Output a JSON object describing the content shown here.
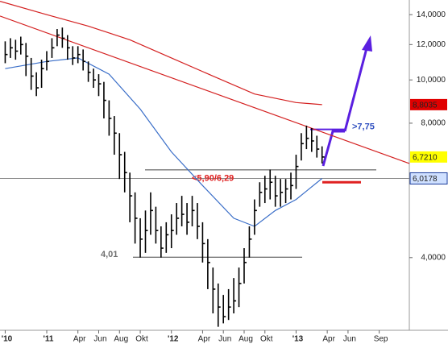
{
  "chart_data": {
    "type": "ohlc",
    "color": "#000000",
    "log_y": true,
    "xlim": [
      7.5,
      46.9
    ],
    "ylim": [
      2.75,
      15.1
    ],
    "xticks": [
      {
        "value": 8,
        "label": "'10"
      },
      {
        "value": 12,
        "label": "'11"
      },
      {
        "value": 15,
        "label": "Apr"
      },
      {
        "value": 17,
        "label": "Jun"
      },
      {
        "value": 19,
        "label": "Aug"
      },
      {
        "value": 21,
        "label": "Okt"
      },
      {
        "value": 24,
        "label": "'12"
      },
      {
        "value": 27,
        "label": "Apr"
      },
      {
        "value": 29,
        "label": "Jun"
      },
      {
        "value": 31,
        "label": "Aug"
      },
      {
        "value": 33,
        "label": "Okt"
      },
      {
        "value": 36,
        "label": "'13"
      },
      {
        "value": 39,
        "label": "Apr"
      },
      {
        "value": 41,
        "label": "Jun"
      },
      {
        "value": 44,
        "label": "Sep"
      }
    ],
    "yticks": [
      {
        "value": 4,
        "label": "4,0000"
      },
      {
        "value": 8,
        "label": "8,0000"
      },
      {
        "value": 10,
        "label": "10,0000"
      },
      {
        "value": 12,
        "label": "12,0000"
      },
      {
        "value": 14,
        "label": "14,0000"
      }
    ],
    "x": [
      8,
      8.5,
      9,
      9.5,
      10,
      10.5,
      11,
      11.5,
      12,
      12.5,
      13,
      13.5,
      14,
      14.5,
      15,
      15.5,
      16,
      16.5,
      17,
      17.5,
      18,
      18.5,
      19,
      19.5,
      20,
      20.5,
      21,
      21.5,
      22,
      22.5,
      23,
      23.5,
      24,
      24.5,
      25,
      25.5,
      26,
      26.5,
      27,
      27.5,
      28,
      28.5,
      29,
      29.5,
      30,
      30.5,
      31,
      31.5,
      32,
      32.5,
      33,
      33.5,
      34,
      34.5,
      35,
      35.5,
      36,
      36.5,
      37,
      37.5,
      38,
      38.5
    ],
    "high": [
      12.2,
      12.4,
      12.3,
      12.5,
      12.1,
      11.2,
      10.4,
      11.1,
      11.6,
      12.4,
      13.0,
      13.1,
      12.6,
      11.9,
      11.9,
      11.7,
      11.0,
      10.6,
      10.3,
      9.9,
      9.0,
      8.3,
      7.6,
      6.9,
      6.2,
      5.6,
      4.9,
      5.1,
      5.6,
      5.2,
      4.7,
      4.8,
      5.0,
      5.3,
      5.5,
      5.3,
      5.5,
      5.3,
      4.8,
      4.4,
      3.8,
      3.5,
      3.3,
      3.4,
      3.6,
      3.8,
      4.2,
      4.7,
      5.4,
      5.9,
      6.1,
      6.3,
      6.1,
      6.0,
      6.0,
      6.2,
      6.8,
      7.6,
      7.9,
      7.8,
      7.5,
      7.1
    ],
    "low": [
      10.9,
      11.2,
      11.1,
      11.4,
      10.2,
      9.5,
      9.2,
      9.6,
      10.5,
      11.2,
      11.9,
      11.8,
      11.1,
      10.8,
      10.9,
      10.5,
      9.9,
      9.6,
      9.2,
      8.2,
      7.5,
      6.8,
      6.0,
      5.6,
      4.8,
      4.3,
      4.0,
      4.1,
      4.5,
      4.3,
      4.0,
      4.1,
      4.2,
      4.5,
      4.7,
      4.5,
      4.7,
      4.4,
      3.9,
      3.4,
      3.0,
      2.8,
      2.85,
      2.9,
      3.0,
      3.1,
      3.5,
      4.0,
      4.5,
      5.2,
      5.3,
      5.4,
      5.2,
      5.2,
      5.3,
      5.4,
      5.7,
      6.6,
      7.0,
      6.9,
      6.7,
      6.5
    ],
    "close": [
      11.4,
      11.8,
      11.6,
      12.0,
      11.3,
      10.2,
      9.6,
      10.6,
      11.0,
      11.8,
      12.6,
      12.4,
      11.8,
      11.2,
      11.4,
      11.0,
      10.4,
      10.0,
      9.8,
      9.0,
      8.2,
      7.6,
      6.8,
      6.2,
      5.5,
      4.9,
      4.4,
      4.6,
      5.1,
      4.6,
      4.2,
      4.5,
      4.6,
      4.9,
      5.0,
      4.8,
      5.1,
      4.7,
      4.3,
      3.9,
      3.4,
      3.1,
      2.95,
      3.1,
      3.2,
      3.5,
      3.9,
      4.4,
      5.1,
      5.6,
      5.7,
      5.9,
      5.5,
      5.6,
      5.7,
      5.8,
      6.4,
      7.2,
      7.4,
      7.3,
      7.0,
      6.72
    ],
    "overlays": [
      {
        "color": "#d42020",
        "x": [
          7.5,
          12,
          16,
          20,
          24,
          28,
          32,
          36,
          38.5
        ],
        "values": [
          15.0,
          14.0,
          13.2,
          12.3,
          11.2,
          10.2,
          9.3,
          8.9,
          8.8035
        ]
      },
      {
        "color": "#3a6ec8",
        "x": [
          8,
          12,
          15,
          18,
          21,
          24,
          27,
          30,
          32,
          34,
          36,
          38.5
        ],
        "values": [
          10.6,
          11.0,
          11.2,
          10.3,
          8.6,
          6.9,
          5.8,
          4.9,
          4.7,
          5.1,
          5.4,
          6.0178
        ]
      },
      {
        "color": "#d42020",
        "x": [
          7.5,
          46.9
        ],
        "values": [
          13.9,
          6.5
        ]
      }
    ],
    "price_labels": [
      {
        "label": "8,8035",
        "value": 8.8035,
        "color": "#e00000",
        "text_color": "#ffffff"
      },
      {
        "label": "6,7210",
        "value": 6.721,
        "color": "#ffff00",
        "text_color": "#000000"
      },
      {
        "label": "6,0178",
        "value": 6.0178,
        "color": "#cfe0ff",
        "text_color": "#1a3c9c"
      }
    ],
    "levels": [
      {
        "label": "<5,90/6,29",
        "values": [
          5.9,
          6.29
        ],
        "color": "#e02020"
      },
      {
        "label": "4,01",
        "value": 4.01,
        "color": "#707070"
      },
      {
        "label": ">7,75",
        "value": 7.75,
        "color": "#3050c0"
      }
    ]
  }
}
